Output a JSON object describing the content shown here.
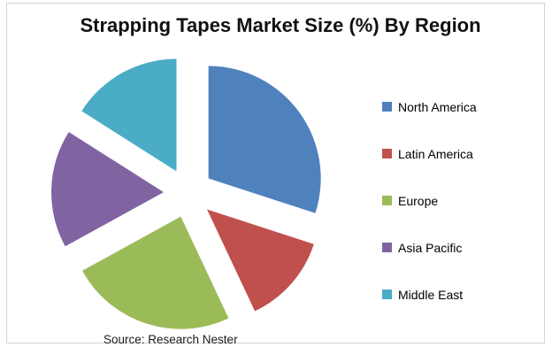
{
  "chart_data": {
    "type": "pie",
    "title": "Strapping Tapes Market Size (%) By Region",
    "source": "Source: Research Nester",
    "unit": "%",
    "exploded": true,
    "legend_position": "right",
    "start_angle_deg": 0,
    "direction": "clockwise",
    "slices": [
      {
        "label": "North America",
        "value": 30,
        "color": "#4F81BD"
      },
      {
        "label": "Latin America",
        "value": 13,
        "color": "#C0504D"
      },
      {
        "label": "Europe",
        "value": 24,
        "color": "#9BBB59"
      },
      {
        "label": "Asia Pacific",
        "value": 17,
        "color": "#8064A2"
      },
      {
        "label": "Middle East",
        "value": 16,
        "color": "#4BACC6"
      }
    ]
  },
  "frame": {
    "border_color": "#d4d4d4",
    "background": "#ffffff"
  }
}
